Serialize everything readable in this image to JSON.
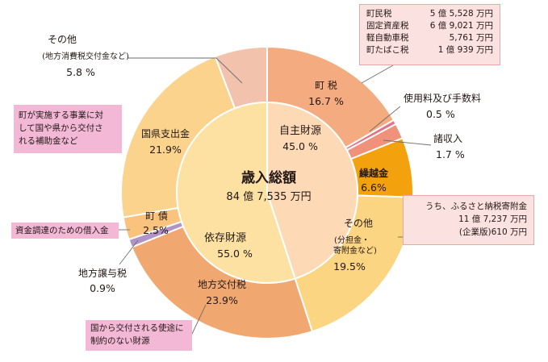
{
  "chart_data": {
    "type": "pie",
    "title": "歳入総額",
    "total": "84 億 7,535 万円",
    "inner": [
      {
        "name": "自主財源",
        "value": 45.0,
        "pct": "45.0 %",
        "color": "#fdd9b6"
      },
      {
        "name": "依存財源",
        "value": 55.0,
        "pct": "55.0 %",
        "color": "#fde1a2"
      }
    ],
    "outer": [
      {
        "key": "chozei",
        "name": "町 税",
        "value": 16.7,
        "pct": "16.7 %",
        "color": "#f3ab7f"
      },
      {
        "key": "shiyoryo",
        "name": "使用料及び手数料",
        "value": 0.5,
        "pct": "0.5 %",
        "color": "#e2738a"
      },
      {
        "key": "shoshunyu",
        "name": "諸収入",
        "value": 1.7,
        "pct": "1.7 %",
        "color": "#ef9279"
      },
      {
        "key": "kurikoshi",
        "name": "繰越金",
        "value": 6.6,
        "pct": "6.6%",
        "color": "#f3a10d"
      },
      {
        "key": "sonota_jishu",
        "name": "その他",
        "sub": "(分担金・",
        "sub2": "寄附金など)",
        "value": 19.5,
        "pct": "19.5%",
        "color": "#fcd583"
      },
      {
        "key": "chihokofu",
        "name": "地方交付税",
        "value": 23.9,
        "pct": "23.9%",
        "color": "#f1a870"
      },
      {
        "key": "joyozei",
        "name": "地方譲与税",
        "value": 0.9,
        "pct": "0.9%",
        "color": "#b293c5"
      },
      {
        "key": "chosai",
        "name": "町 債",
        "value": 2.5,
        "pct": "2.5%",
        "color": "#f9c27d"
      },
      {
        "key": "kokuken",
        "name": "国県支出金",
        "value": 21.9,
        "pct": "21.9%",
        "color": "#fbd38c"
      },
      {
        "key": "sonota_izon",
        "name": "その他",
        "sub": "(地方消費税交付金など)",
        "value": 5.8,
        "pct": "5.8 %",
        "color": "#f2c2ad"
      }
    ]
  },
  "notes": {
    "zei_rows": [
      {
        "label": "町民税",
        "value": "5 億 5,528 万円"
      },
      {
        "label": "固定資産税",
        "value": "6 億 9,021 万円"
      },
      {
        "label": "軽自動車税",
        "value": "5,761 万円"
      },
      {
        "label": "町たばこ税",
        "value": "1 億 939 万円"
      }
    ],
    "furusato": {
      "line1": "うち、ふるさと納税寄附金",
      "line2": "11 億 7,237 万円",
      "line3": "(企業版)610 万円"
    },
    "hojokin": [
      "町が実施する事業に対",
      "して国や県から交付さ",
      "れる補助金など"
    ],
    "kariire": "資金調達のための借入金",
    "kofuzei": [
      "国から交付される使途に",
      "制約のない財源"
    ]
  }
}
